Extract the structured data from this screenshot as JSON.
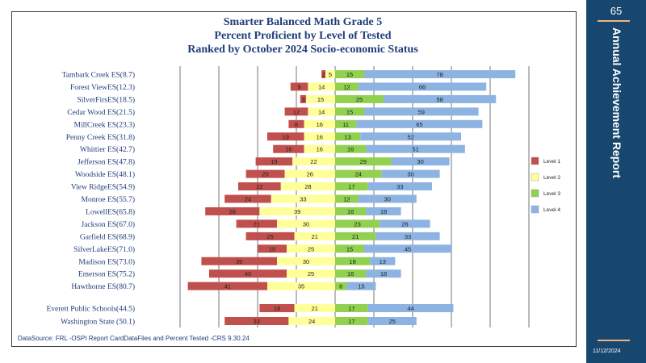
{
  "page_number": "65",
  "sidebar_title": "Annual   Achievement   Report",
  "sidebar_date": "11/12/2024",
  "footer_source": "DataSource:  FRL  -OSPI   Report CardDataFiles  and  Percent  Tested     -CRS  9.30.24",
  "colors": {
    "level1": "#c0504d",
    "level2": "#ffff99",
    "level3": "#92d050",
    "level4": "#8db3e2",
    "sidebar": "#17466f"
  },
  "chart_data": {
    "type": "bar",
    "orientation": "horizontal-diverging",
    "title": "Smarter Balanced  Math Grade 5",
    "subtitle_1": "Percent Proficient by Level of Tested",
    "subtitle_2": "Ranked by October 2024 Socio-economic  Status",
    "legend_position": "right",
    "legend": [
      "Level 1",
      "Level 2",
      "Level 3",
      "Level 4"
    ],
    "grid": true,
    "categories": [
      "Tambark Creek ES(8.7)",
      "Forest ViewES(12.3)",
      "SilverFirsES(18.5)",
      "Cedar Wood ES(21.5)",
      "MillCreek ES(23.3)",
      "Penny Creek ES(31.8)",
      "Whittier ES(42.7)",
      "Jefferson  ES(47.8)",
      "Woodside ES(48.1)",
      "View RidgeES(54.9)",
      "Monroe ES(55.7)",
      "LowellES(65.8)",
      "Jackson ES(67.0)",
      "Garfield ES(68.9)",
      "SilverLakeES(71.0)",
      "Madison ES(73.0)",
      "Emerson ES(75.2)",
      "Hawthorne  ES(80.7)",
      "Everett  Public Schools(44.5)",
      "Washington State  (50.1)"
    ],
    "series": [
      {
        "name": "Level 1",
        "values": [
          2,
          9,
          3,
          12,
          8,
          19,
          16,
          19,
          20,
          22,
          24,
          28,
          21,
          25,
          15,
          39,
          40,
          41,
          18,
          33
        ]
      },
      {
        "name": "Level 2",
        "values": [
          5,
          14,
          15,
          14,
          16,
          16,
          16,
          22,
          26,
          28,
          33,
          39,
          30,
          21,
          25,
          30,
          25,
          35,
          21,
          24
        ]
      },
      {
        "name": "Level 3",
        "values": [
          15,
          12,
          25,
          15,
          11,
          13,
          16,
          29,
          24,
          17,
          12,
          16,
          23,
          21,
          15,
          18,
          16,
          6,
          17,
          17
        ]
      },
      {
        "name": "Level 4",
        "values": [
          78,
          66,
          58,
          59,
          65,
          52,
          51,
          30,
          30,
          33,
          30,
          18,
          26,
          33,
          45,
          13,
          18,
          15,
          44,
          25
        ]
      }
    ]
  }
}
